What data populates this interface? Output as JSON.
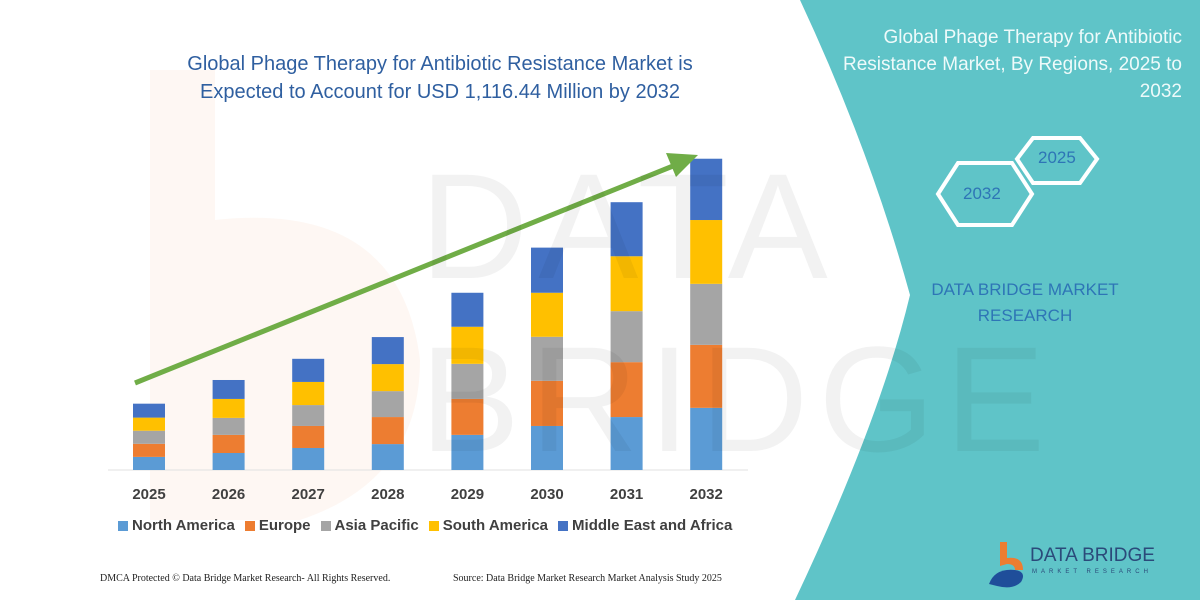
{
  "header": {
    "title": "Global Phage Therapy for Antibiotic Resistance Market is Expected to Account for USD 1,116.44 Million by 2032"
  },
  "side_panel": {
    "title": "Global Phage Therapy for Antibiotic Resistance Market, By Regions, 2025 to 2032",
    "hex_start": "2025",
    "hex_end": "2032",
    "brand": "DATA BRIDGE MARKET RESEARCH",
    "color": "#5fc4c8"
  },
  "logo": {
    "name": "DATA BRIDGE",
    "sub": "MARKET RESEARCH"
  },
  "watermark": "DATA BRIDGE",
  "footer": {
    "copyright": "DMCA Protected © Data Bridge Market Research- All Rights Reserved.",
    "source": "Source: Data Bridge Market Research Market Analysis Study 2025"
  },
  "chart_data": {
    "type": "bar",
    "stacked": true,
    "title": "Global Phage Therapy for Antibiotic Resistance Market is Expected to Account for USD 1,116.44 Million by 2032",
    "xlabel": "",
    "ylabel": "",
    "grid": false,
    "legend_position": "bottom",
    "trend_arrow": {
      "color": "#70ad47"
    },
    "categories": [
      "2025",
      "2026",
      "2027",
      "2028",
      "2029",
      "2030",
      "2031",
      "2032"
    ],
    "series": [
      {
        "name": "North America",
        "color": "#5b9bd5",
        "values": [
          47,
          61,
          79,
          93,
          126,
          158,
          190,
          223
        ]
      },
      {
        "name": "Europe",
        "color": "#ed7d31",
        "values": [
          47,
          65,
          79,
          97,
          129,
          162,
          197,
          226
        ]
      },
      {
        "name": "Asia Pacific",
        "color": "#a5a5a5",
        "values": [
          47,
          61,
          75,
          93,
          126,
          158,
          183,
          219
        ]
      },
      {
        "name": "South America",
        "color": "#ffc000",
        "values": [
          47,
          68,
          83,
          97,
          133,
          158,
          197,
          229
        ]
      },
      {
        "name": "Middle East and Africa",
        "color": "#4472c4",
        "values": [
          50,
          68,
          83,
          97,
          122,
          162,
          194,
          220
        ]
      }
    ]
  }
}
